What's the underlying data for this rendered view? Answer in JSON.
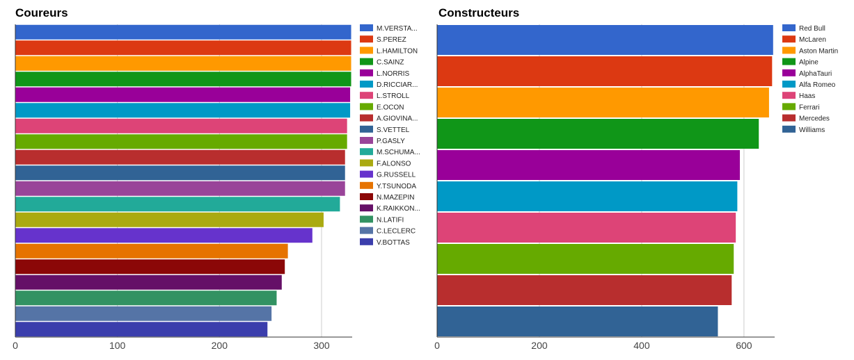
{
  "chart_data": [
    {
      "type": "bar",
      "orientation": "horizontal",
      "title": "Coureurs",
      "xlabel": "",
      "xlim": [
        0,
        330
      ],
      "xticks": [
        0,
        100,
        200,
        300
      ],
      "grid": true,
      "legend_position": "right",
      "categories": [
        "M.VERSTA...",
        "S.PEREZ",
        "L.HAMILTON",
        "C.SAINZ",
        "L.NORRIS",
        "D.RICCIAR...",
        "L.STROLL",
        "E.OCON",
        "A.GIOVINA...",
        "S.VETTEL",
        "P.GASLY",
        "M.SCHUMA...",
        "F.ALONSO",
        "G.RUSSELL",
        "Y.TSUNODA",
        "N.MAZEPIN",
        "K.RAIKKON...",
        "N.LATIFI",
        "C.LECLERC",
        "V.BOTTAS"
      ],
      "values": [
        329,
        329,
        329,
        329,
        328,
        328,
        325,
        325,
        323,
        323,
        323,
        318,
        302,
        291,
        267,
        264,
        261,
        256,
        251,
        247
      ],
      "colors": [
        "#3366cc",
        "#dc3912",
        "#ff9900",
        "#109618",
        "#990099",
        "#0099c6",
        "#dd4477",
        "#66aa00",
        "#b82e2e",
        "#316395",
        "#994499",
        "#22aa99",
        "#aaaa11",
        "#6633cc",
        "#e67300",
        "#8b0707",
        "#651067",
        "#329262",
        "#5574a6",
        "#3b3eac"
      ]
    },
    {
      "type": "bar",
      "orientation": "horizontal",
      "title": "Constructeurs",
      "xlabel": "",
      "xlim": [
        0,
        660
      ],
      "xticks": [
        0,
        200,
        400,
        600
      ],
      "grid": true,
      "legend_position": "right",
      "categories": [
        "Red Bull",
        "McLaren",
        "Aston Martin",
        "Alpine",
        "AlphaTauri",
        "Alfa Romeo",
        "Haas",
        "Ferrari",
        "Mercedes",
        "Williams"
      ],
      "values": [
        657,
        655,
        649,
        629,
        592,
        587,
        584,
        580,
        576,
        549
      ],
      "colors": [
        "#3366cc",
        "#dc3912",
        "#ff9900",
        "#109618",
        "#990099",
        "#0099c6",
        "#dd4477",
        "#66aa00",
        "#b82e2e",
        "#316395"
      ]
    }
  ]
}
